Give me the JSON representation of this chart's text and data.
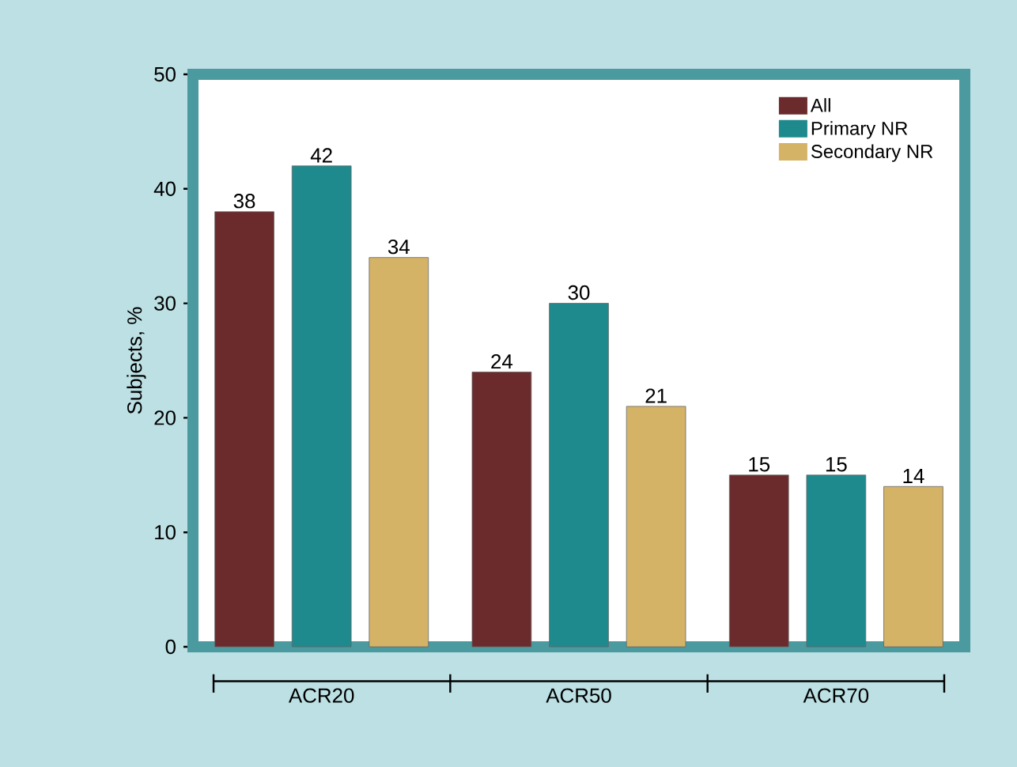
{
  "chart_data": {
    "type": "bar",
    "ylabel": "Subjects, %",
    "categories": [
      "ACR20",
      "ACR50",
      "ACR70"
    ],
    "series": [
      {
        "name": "All",
        "color": "#6b2a2b",
        "values": [
          38,
          24,
          15
        ]
      },
      {
        "name": "Primary NR",
        "color": "#1f8a8e",
        "values": [
          42,
          30,
          15
        ]
      },
      {
        "name": "Secondary NR",
        "color": "#d4b266",
        "values": [
          34,
          21,
          14
        ]
      }
    ],
    "ylim": [
      0,
      50
    ],
    "yticks": [
      0,
      10,
      20,
      30,
      40,
      50
    ],
    "data_labels": true,
    "legend": "top right",
    "grid": false
  }
}
